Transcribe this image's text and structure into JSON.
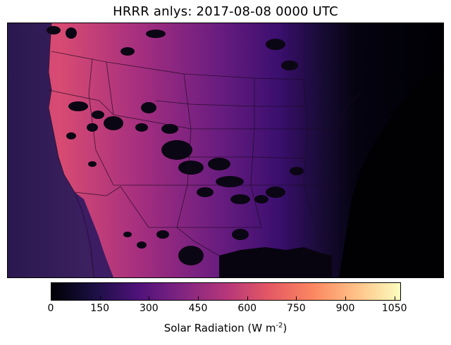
{
  "title": "HRRR anlys: 2017-08-08 0000 UTC",
  "colorbar": {
    "label_main": "Solar Radiation (W m",
    "label_exp": "-2",
    "label_close": ")",
    "ticks": [
      "0",
      "150",
      "300",
      "450",
      "600",
      "750",
      "900",
      "1050"
    ],
    "tick_values": [
      0,
      150,
      300,
      450,
      600,
      750,
      900,
      1050
    ],
    "range": [
      0,
      1070
    ],
    "colormap": "magma",
    "colors": [
      "#000004",
      "#1c1044",
      "#4f127b",
      "#812581",
      "#b5367a",
      "#e55964",
      "#fb8761",
      "#fec287",
      "#fcfdbf"
    ]
  },
  "map": {
    "projection": "lambert-conformal",
    "region": "CONUS",
    "features": [
      "state-borders",
      "country-borders",
      "coastlines"
    ],
    "field": "incoming shortwave solar radiation",
    "pattern": "high values over western US and Pacific coast, decreasing eastward to zero (night) over eastern US"
  }
}
